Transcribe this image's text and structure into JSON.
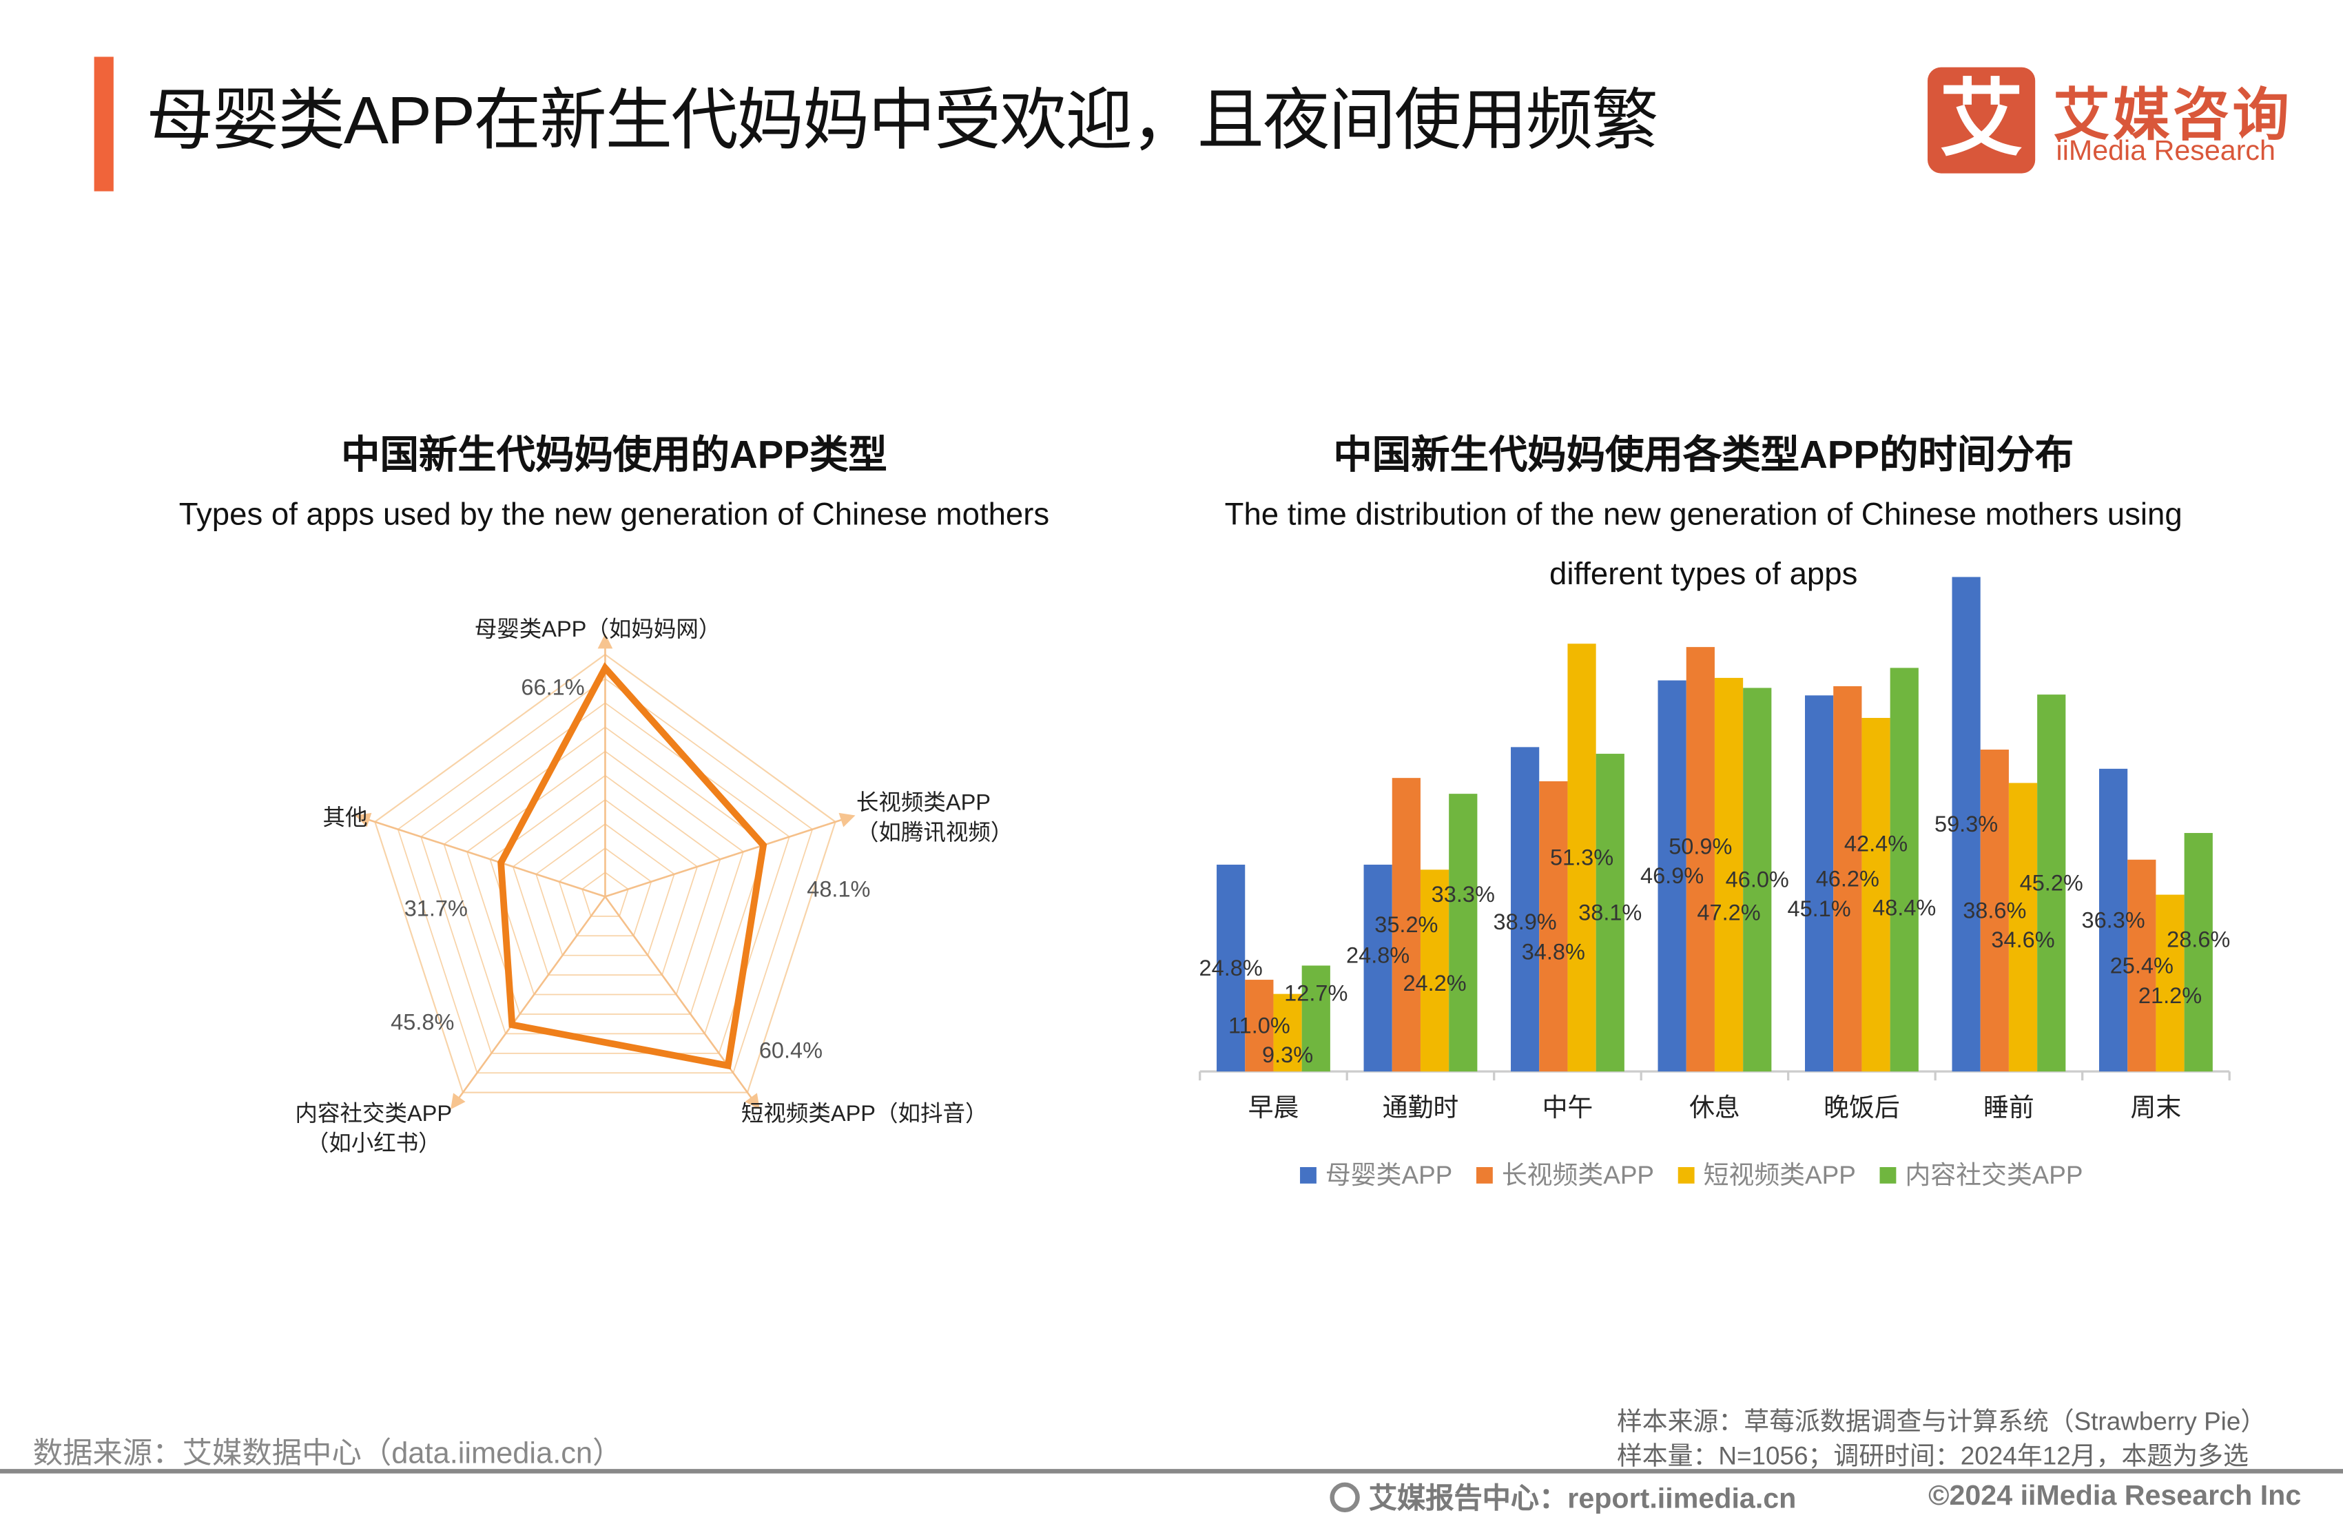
{
  "header": {
    "title": "母婴类APP在新生代妈妈中受欢迎，且夜间使用频繁",
    "logo": {
      "mark": "艾",
      "cn": "艾媒咨询",
      "en": "iiMedia Research",
      "color": "#d9573a"
    },
    "accent_color": "#f0643a"
  },
  "chart_data": [
    {
      "type": "radar",
      "title": "中国新生代妈妈使用的APP类型",
      "subtitle": "Types of apps used by the new generation of Chinese mothers",
      "categories": [
        "母婴类APP（如妈妈网）",
        "长视频类APP（如腾讯视频）",
        "短视频类APP（如抖音）",
        "内容社交类APP（如小红书）",
        "其他"
      ],
      "category_lines": [
        [
          "母婴类APP（如妈妈网）"
        ],
        [
          "长视频类APP",
          "（如腾讯视频）"
        ],
        [
          "短视频类APP（如抖音）"
        ],
        [
          "内容社交类APP",
          "（如小红书）"
        ],
        [
          "其他"
        ]
      ],
      "values": [
        66.1,
        48.1,
        60.4,
        45.8,
        31.7
      ],
      "value_labels": [
        "66.1%",
        "48.1%",
        "60.4%",
        "45.8%",
        "31.7%"
      ],
      "rmax": 70,
      "line_color": "#ef7f1a",
      "grid_color": "#f8d3a8"
    },
    {
      "type": "bar",
      "title": "中国新生代妈妈使用各类型APP的时间分布",
      "subtitle_lines": [
        "The time distribution of the new generation of Chinese mothers using",
        "different types of apps"
      ],
      "categories": [
        "早晨",
        "通勤时",
        "中午",
        "休息",
        "晚饭后",
        "睡前",
        "周末"
      ],
      "series": [
        {
          "name": "母婴类APP",
          "color": "#4472c4",
          "values": [
            24.8,
            24.8,
            38.9,
            46.9,
            45.1,
            59.3,
            36.3
          ]
        },
        {
          "name": "长视频类APP",
          "color": "#ed7d31",
          "values": [
            11.0,
            35.2,
            34.8,
            50.9,
            46.2,
            38.6,
            25.4
          ]
        },
        {
          "name": "短视频类APP",
          "color": "#f2b800",
          "values": [
            9.3,
            24.2,
            51.3,
            47.2,
            42.4,
            34.6,
            21.2
          ]
        },
        {
          "name": "内容社交类APP",
          "color": "#70b63f",
          "values": [
            12.7,
            33.3,
            38.1,
            46.0,
            48.4,
            45.2,
            28.6
          ]
        }
      ],
      "unit": "%",
      "legend": "bottom",
      "grid": false
    }
  ],
  "footer": {
    "source": "数据来源：艾媒数据中心（data.iimedia.cn）",
    "sample_source": "样本来源：草莓派数据调查与计算系统（Strawberry Pie）",
    "sample_info": "样本量：N=1056；调研时间：2024年12月，本题为多选",
    "report_center": "艾媒报告中心：report.iimedia.cn",
    "copyright": "©2024  iiMedia Research  Inc"
  }
}
